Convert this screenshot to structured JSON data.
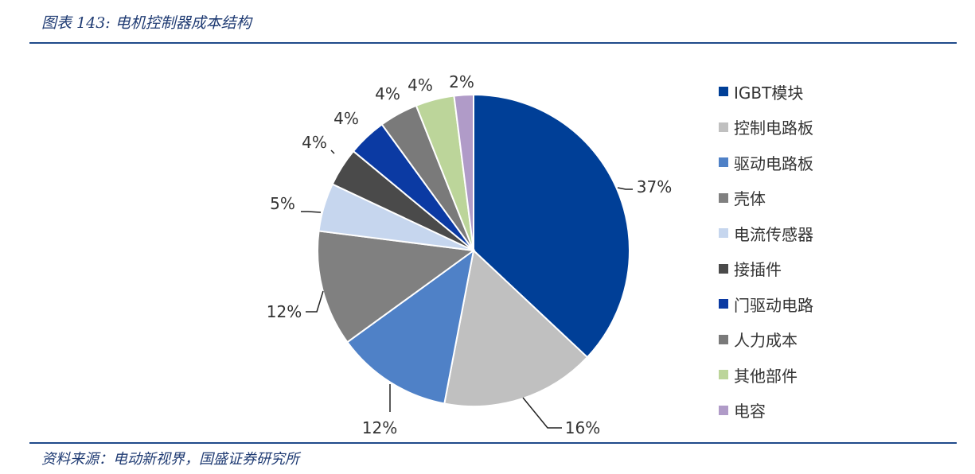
{
  "header": {
    "title": "图表 143:  电机控制器成本结构"
  },
  "footer": {
    "source": "资料来源：电动新视界，国盛证券研究所"
  },
  "chart_data": {
    "type": "pie",
    "title": "",
    "categories": [
      "IGBT模块",
      "控制电路板",
      "驱动电路板",
      "壳体",
      "电流传感器",
      "接插件",
      "门驱动电路",
      "人力成本",
      "其他部件",
      "电容"
    ],
    "values": [
      37,
      16,
      12,
      12,
      5,
      4,
      4,
      4,
      4,
      2
    ],
    "data_labels": [
      "37%",
      "16%",
      "12%",
      "12%",
      "5%",
      "4%",
      "4%",
      "4%",
      "4%",
      "2%"
    ],
    "colors": [
      "#003f97",
      "#c0c0c0",
      "#4f81c7",
      "#808080",
      "#c6d6ee",
      "#4a4a4a",
      "#0b3aa3",
      "#7a7a7a",
      "#bcd59a",
      "#b09bc8"
    ],
    "start_angle": "12 o'clock",
    "direction": "clockwise",
    "legend_position": "right"
  }
}
